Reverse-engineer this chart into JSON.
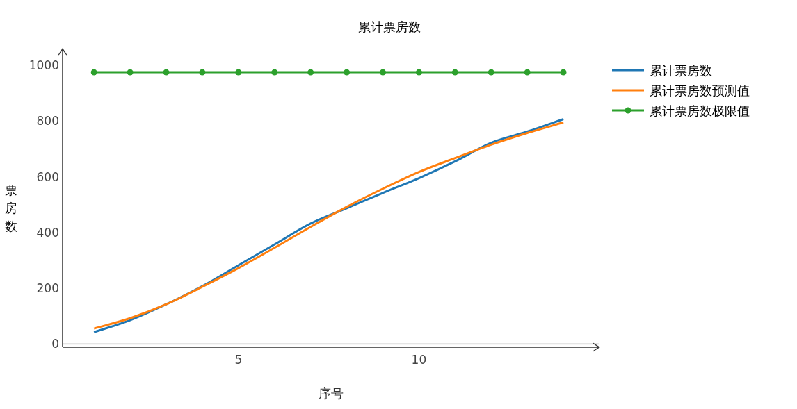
{
  "chart_data": {
    "type": "line",
    "title": "累计票房数",
    "xlabel": "序号",
    "ylabel": "票房数",
    "x": [
      1,
      2,
      3,
      4,
      5,
      6,
      7,
      8,
      9,
      10,
      11,
      12,
      13,
      14
    ],
    "series": [
      {
        "name": "累计票房数",
        "color": "#1f77b4",
        "marker": "none",
        "values": [
          42,
          85,
          142,
          207,
          282,
          357,
          432,
          487,
          542,
          595,
          655,
          722,
          762,
          807
        ]
      },
      {
        "name": "累计票房数预测值",
        "color": "#ff7f0e",
        "marker": "none",
        "values": [
          55,
          92,
          142,
          205,
          272,
          345,
          420,
          492,
          557,
          617,
          667,
          715,
          757,
          795
        ]
      },
      {
        "name": "累计票房数极限值",
        "color": "#2ca02c",
        "marker": "circle",
        "values": [
          975,
          975,
          975,
          975,
          975,
          975,
          975,
          975,
          975,
          975,
          975,
          975,
          975,
          975
        ]
      }
    ],
    "xlim": [
      0.13,
      15
    ],
    "ylim": [
      -12,
      1060
    ],
    "xticks": [
      5,
      10
    ],
    "yticks": [
      0,
      200,
      400,
      600,
      800,
      1000
    ],
    "ref_lines": [
      {
        "axis": "y",
        "value": 0,
        "color": "#dddddd"
      }
    ],
    "legend": "right",
    "grid": false,
    "line_style": "solid"
  }
}
